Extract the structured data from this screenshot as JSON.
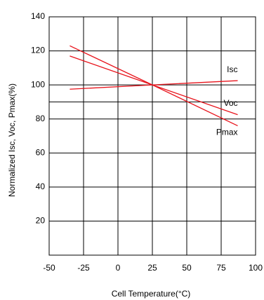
{
  "chart_data": {
    "type": "line",
    "xlabel": "Cell Temperature(°C)",
    "ylabel": "Normalized Isc, Voc, Pmax(%)",
    "x": [
      -35,
      25,
      87
    ],
    "series": [
      {
        "name": "Isc",
        "color": "#e8141c",
        "values": [
          97.5,
          100,
          102.5
        ]
      },
      {
        "name": "Voc",
        "color": "#e8141c",
        "values": [
          117,
          100,
          82.5
        ]
      },
      {
        "name": "Pmax",
        "color": "#e8141c",
        "values": [
          123,
          100,
          76
        ]
      }
    ],
    "xlim": [
      -50,
      100
    ],
    "xticks": [
      -50,
      -25,
      0,
      25,
      50,
      75,
      100
    ],
    "ylim": [
      0,
      140
    ],
    "yticks": [
      20,
      40,
      60,
      80,
      100,
      120,
      140
    ],
    "reference_line": 90,
    "grid": true
  }
}
